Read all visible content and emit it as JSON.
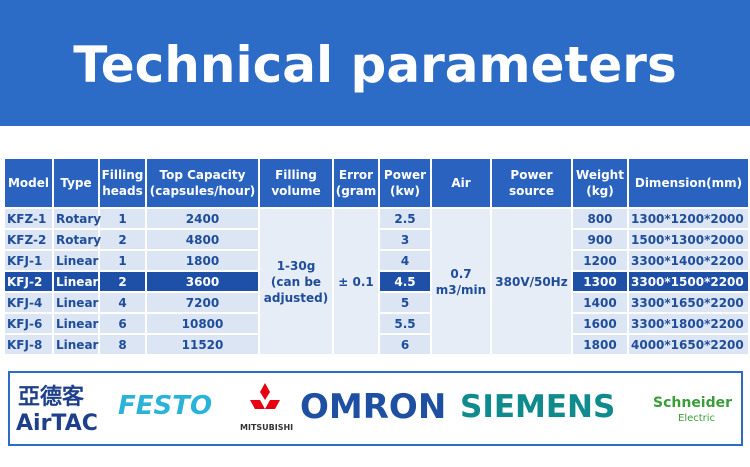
{
  "header": {
    "title": "Technical parameters"
  },
  "table": {
    "headers": [
      "Model",
      "Type",
      "Filling heads",
      "Top Capacity (capsules/hour)",
      "Filling volume",
      "Error (gram",
      "Power (kw)",
      "Air",
      "Power source",
      "Weight (kg)",
      "Dimension(mm)"
    ],
    "rows": [
      [
        "KFZ-1",
        "Rotary",
        "1",
        "2400",
        "2.5",
        "800",
        "1300*1200*2000"
      ],
      [
        "KFZ-2",
        "Rotary",
        "2",
        "4800",
        "3",
        "900",
        "1500*1300*2000"
      ],
      [
        "KFJ-1",
        "Linear",
        "1",
        "1800",
        "4",
        "1200",
        "3300*1400*2200"
      ],
      [
        "KFJ-2",
        "Linear",
        "2",
        "3600",
        "4.5",
        "1300",
        "3300*1500*2200"
      ],
      [
        "KFJ-4",
        "Linear",
        "4",
        "7200",
        "5",
        "1400",
        "3300*1650*2200"
      ],
      [
        "KFJ-6",
        "Linear",
        "6",
        "10800",
        "5.5",
        "1600",
        "3300*1800*2200"
      ],
      [
        "KFJ-8",
        "Linear",
        "8",
        "11520",
        "6",
        "1800",
        "4000*1650*2200"
      ]
    ],
    "filling_volume": [
      "1-30g",
      "(can be",
      "adjusted)"
    ],
    "error": "± 0.1",
    "air": [
      "0.7",
      "m3/min"
    ],
    "power_source": "380V/50Hz"
  },
  "logos": [
    "亞德客",
    "AirTAC",
    "FESTO",
    "MITSUBISHI",
    "OMRON",
    "SIEMENS",
    "Schneider",
    "Electric"
  ]
}
